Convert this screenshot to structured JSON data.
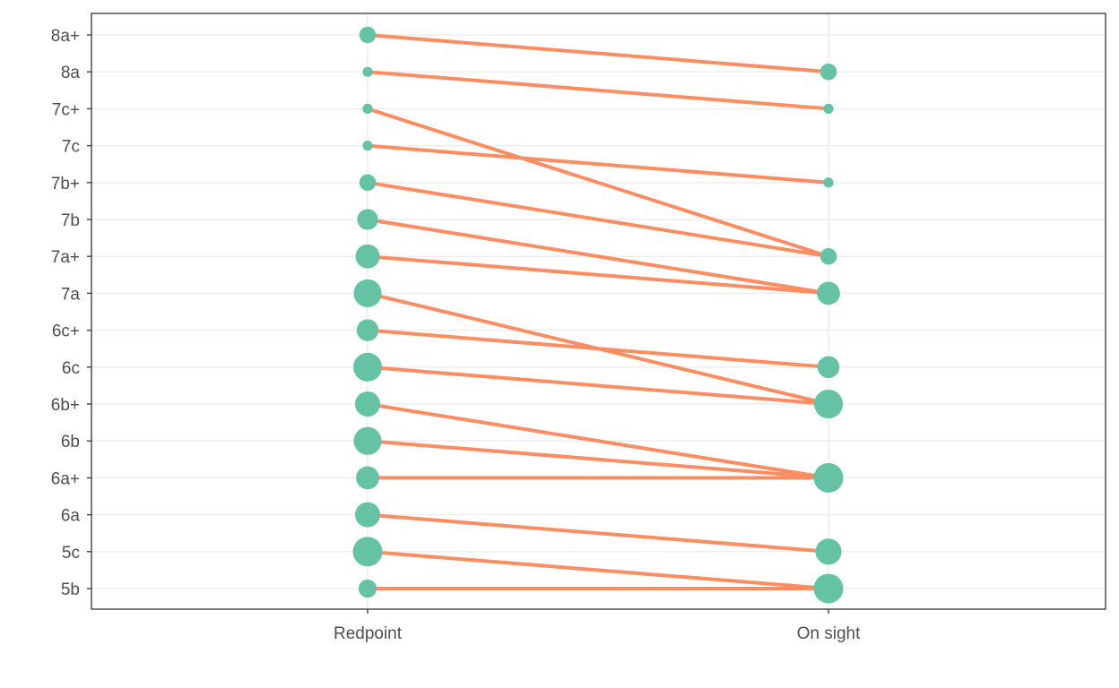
{
  "chart_data": {
    "type": "slope",
    "title": "",
    "xlabel": "",
    "ylabel": "",
    "categories": [
      "Redpoint",
      "On sight"
    ],
    "y_categories": [
      "5b",
      "5c",
      "6a",
      "6a+",
      "6b",
      "6b+",
      "6c",
      "6c+",
      "7a",
      "7a+",
      "7b",
      "7b+",
      "7c",
      "7c+",
      "8a",
      "8a+"
    ],
    "grid": true,
    "legend": "none",
    "segments": [
      {
        "from": "8a+",
        "to": "8a"
      },
      {
        "from": "8a",
        "to": "7c+"
      },
      {
        "from": "7c+",
        "to": "7a+"
      },
      {
        "from": "7c",
        "to": "7b+"
      },
      {
        "from": "7b+",
        "to": "7a+"
      },
      {
        "from": "7b",
        "to": "7a"
      },
      {
        "from": "7a+",
        "to": "7a"
      },
      {
        "from": "7a",
        "to": "6b+"
      },
      {
        "from": "6c+",
        "to": "6c"
      },
      {
        "from": "6c",
        "to": "6b+"
      },
      {
        "from": "6b+",
        "to": "6a+"
      },
      {
        "from": "6b",
        "to": "6a+"
      },
      {
        "from": "6a+",
        "to": "6a+"
      },
      {
        "from": "6a",
        "to": "5c"
      },
      {
        "from": "5c",
        "to": "5b"
      },
      {
        "from": "5b",
        "to": "5b"
      }
    ],
    "points": {
      "Redpoint": [
        {
          "grade": "8a+",
          "size": 4
        },
        {
          "grade": "8a",
          "size": 1
        },
        {
          "grade": "7c+",
          "size": 1
        },
        {
          "grade": "7c",
          "size": 1
        },
        {
          "grade": "7b+",
          "size": 4
        },
        {
          "grade": "7b",
          "size": 7
        },
        {
          "grade": "7a+",
          "size": 10
        },
        {
          "grade": "7a",
          "size": 14
        },
        {
          "grade": "6c+",
          "size": 8
        },
        {
          "grade": "6c",
          "size": 15
        },
        {
          "grade": "6b+",
          "size": 11
        },
        {
          "grade": "6b",
          "size": 14
        },
        {
          "grade": "6a+",
          "size": 9
        },
        {
          "grade": "6a",
          "size": 11
        },
        {
          "grade": "5c",
          "size": 16
        },
        {
          "grade": "5b",
          "size": 5
        }
      ],
      "On sight": [
        {
          "grade": "8a",
          "size": 4
        },
        {
          "grade": "7c+",
          "size": 1
        },
        {
          "grade": "7b+",
          "size": 1
        },
        {
          "grade": "7a+",
          "size": 4
        },
        {
          "grade": "7a",
          "size": 9
        },
        {
          "grade": "6c",
          "size": 8
        },
        {
          "grade": "6b+",
          "size": 15
        },
        {
          "grade": "6a+",
          "size": 16
        },
        {
          "grade": "5c",
          "size": 12
        },
        {
          "grade": "5b",
          "size": 16
        }
      ]
    },
    "colors": {
      "point": "#66c2a5",
      "line": "#fc8d62",
      "grid": "#ebebeb",
      "border": "#333333",
      "text": "#4d4d4d"
    }
  }
}
